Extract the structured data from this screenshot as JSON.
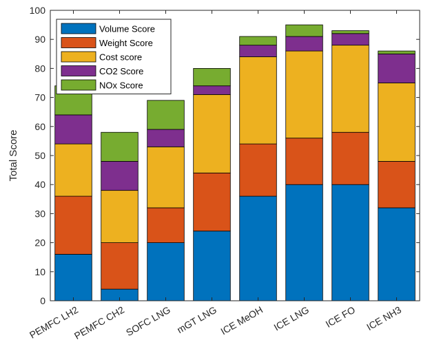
{
  "chart_data": {
    "type": "bar",
    "stacked": true,
    "categories": [
      "PEMFC LH2",
      "PEMFC CH2",
      "SOFC LNG",
      "mGT LNG",
      "ICE MeOH",
      "ICE LNG",
      "ICE FO",
      "ICE NH3"
    ],
    "series": [
      {
        "name": "Volume Score",
        "color": "#0072BD",
        "values": [
          16,
          4,
          20,
          24,
          36,
          40,
          40,
          32
        ]
      },
      {
        "name": "Weight Score",
        "color": "#D95319",
        "values": [
          20,
          16,
          12,
          20,
          18,
          16,
          18,
          16
        ]
      },
      {
        "name": "Cost score",
        "color": "#EDB120",
        "values": [
          18,
          18,
          21,
          27,
          30,
          30,
          30,
          27
        ]
      },
      {
        "name": "CO2 Score",
        "color": "#7E2F8E",
        "values": [
          10,
          10,
          6,
          3,
          4,
          5,
          4,
          10
        ]
      },
      {
        "name": "NOx Score",
        "color": "#77AC30",
        "values": [
          10,
          10,
          10,
          6,
          3,
          4,
          1,
          1
        ]
      }
    ],
    "ylabel": "Total Score",
    "ylim": [
      0,
      100
    ],
    "yticks": [
      0,
      10,
      20,
      30,
      40,
      50,
      60,
      70,
      80,
      90,
      100
    ],
    "grid": false,
    "legend": "top-left"
  }
}
